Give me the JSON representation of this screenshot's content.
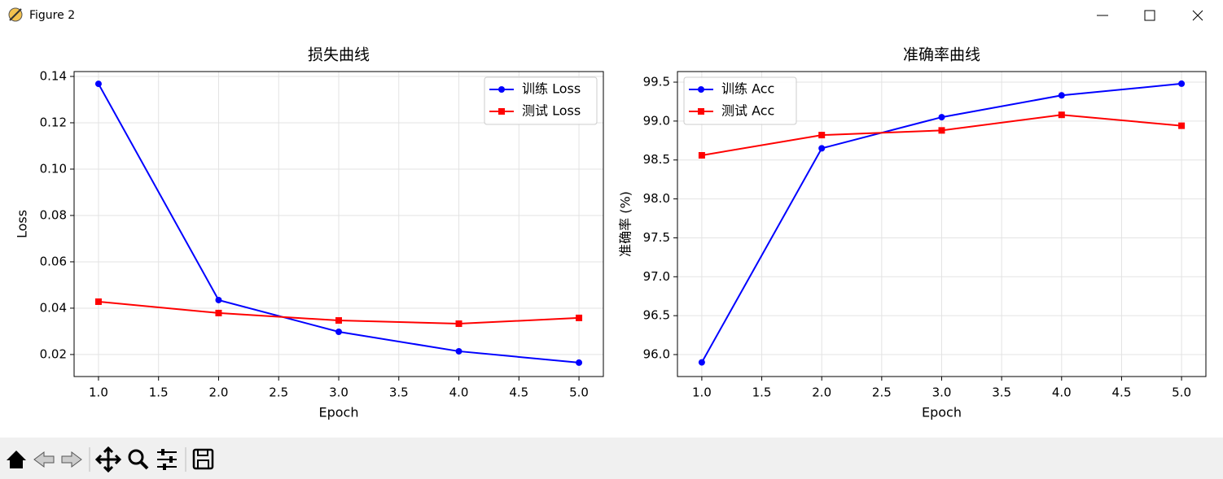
{
  "window": {
    "title": "Figure 2"
  },
  "chart_data": [
    {
      "type": "line",
      "title": "损失曲线",
      "xlabel": "Epoch",
      "ylabel": "Loss",
      "x": [
        1,
        2,
        3,
        4,
        5
      ],
      "series": [
        {
          "name": "训练 Loss",
          "color": "#0000ff",
          "marker": "circle",
          "values": [
            0.1368,
            0.0435,
            0.0298,
            0.0214,
            0.0165
          ]
        },
        {
          "name": "测试 Loss",
          "color": "#ff0000",
          "marker": "square",
          "values": [
            0.0428,
            0.0379,
            0.0347,
            0.0333,
            0.0358
          ]
        }
      ],
      "xlim": [
        0.797,
        5.203
      ],
      "ylim": [
        0.0105,
        0.1421
      ],
      "xticks": [
        {
          "value": 1,
          "label": "1.0"
        },
        1.5,
        {
          "value": 2,
          "label": "2.0"
        },
        2.5,
        {
          "value": 3,
          "label": "3.0"
        },
        3.5,
        {
          "value": 4,
          "label": "4.0"
        },
        4.5,
        {
          "value": 5,
          "label": "5.0"
        }
      ],
      "yticks": [
        0.02,
        0.04,
        0.06,
        0.08,
        {
          "value": 0.1,
          "label": "0.10"
        },
        0.12,
        0.14
      ],
      "grid": true,
      "legend": "upper right"
    },
    {
      "type": "line",
      "title": "准确率曲线",
      "xlabel": "Epoch",
      "ylabel": "准确率 (%)",
      "x": [
        1,
        2,
        3,
        4,
        5
      ],
      "series": [
        {
          "name": "训练 Acc",
          "color": "#0000ff",
          "marker": "circle",
          "values": [
            95.9,
            98.65,
            99.05,
            99.33,
            99.48
          ]
        },
        {
          "name": "测试 Acc",
          "color": "#ff0000",
          "marker": "square",
          "values": [
            98.56,
            98.82,
            98.88,
            99.08,
            98.94
          ]
        }
      ],
      "xlim": [
        0.797,
        5.203
      ],
      "ylim": [
        95.718,
        99.636
      ],
      "xticks": [
        {
          "value": 1,
          "label": "1.0"
        },
        1.5,
        {
          "value": 2,
          "label": "2.0"
        },
        2.5,
        {
          "value": 3,
          "label": "3.0"
        },
        3.5,
        {
          "value": 4,
          "label": "4.0"
        },
        4.5,
        {
          "value": 5,
          "label": "5.0"
        }
      ],
      "yticks": [
        {
          "value": 96,
          "label": "96.0"
        },
        96.5,
        {
          "value": 97,
          "label": "97.0"
        },
        97.5,
        {
          "value": 98,
          "label": "98.0"
        },
        98.5,
        {
          "value": 99,
          "label": "99.0"
        },
        99.5
      ],
      "grid": true,
      "legend": "upper left"
    }
  ]
}
